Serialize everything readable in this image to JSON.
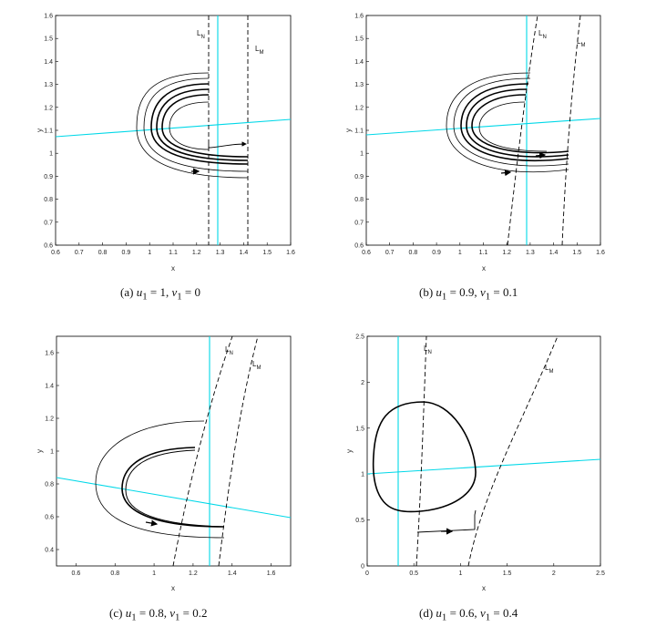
{
  "figure": {
    "panels": [
      {
        "id": "a",
        "caption": {
          "prefix": "(a) ",
          "u_sym": "u",
          "u_val": " = 1, ",
          "v_sym": "v",
          "v_val": " = 0"
        },
        "xlabel": "x",
        "ylabel": "y",
        "xlim": [
          0.6,
          1.6
        ],
        "ylim": [
          0.6,
          1.6
        ],
        "xticks": [
          "0.6",
          "0.7",
          "0.8",
          "0.9",
          "1",
          "1.1",
          "1.2",
          "1.3",
          "1.4",
          "1.5",
          "1.6"
        ],
        "yticks": [
          "0.6",
          "0.7",
          "0.8",
          "0.9",
          "1",
          "1.1",
          "1.2",
          "1.3",
          "1.4",
          "1.5",
          "1.6"
        ],
        "label_LN": "L",
        "label_LN_sub": "N",
        "label_LM": "L",
        "label_LM_sub": "M"
      },
      {
        "id": "b",
        "caption": {
          "prefix": "(b) ",
          "u_sym": "u",
          "u_val": " = 0.9, ",
          "v_sym": "v",
          "v_val": " = 0.1"
        },
        "xlabel": "x",
        "ylabel": "y",
        "xlim": [
          0.6,
          1.6
        ],
        "ylim": [
          0.6,
          1.6
        ],
        "xticks": [
          "0.6",
          "0.7",
          "0.8",
          "0.9",
          "1",
          "1.1",
          "1.2",
          "1.3",
          "1.4",
          "1.5",
          "1.6"
        ],
        "yticks": [
          "0.6",
          "0.7",
          "0.8",
          "0.9",
          "1",
          "1.1",
          "1.2",
          "1.3",
          "1.4",
          "1.5",
          "1.6"
        ],
        "label_LN": "L",
        "label_LN_sub": "N",
        "label_LM": "L",
        "label_LM_sub": "M"
      },
      {
        "id": "c",
        "caption": {
          "prefix": "(c) ",
          "u_sym": "u",
          "u_val": " = 0.8, ",
          "v_sym": "v",
          "v_val": " = 0.2"
        },
        "xlabel": "x",
        "ylabel": "y",
        "xlim": [
          0.5,
          1.7
        ],
        "ylim": [
          0.3,
          1.7
        ],
        "xticks": [
          "0.6",
          "0.8",
          "1",
          "1.2",
          "1.4",
          "1.6"
        ],
        "yticks": [
          "0.4",
          "0.6",
          "0.8",
          "1",
          "1.2",
          "1.4",
          "1.6"
        ],
        "label_LN": "L",
        "label_LN_sub": "N",
        "label_LM": "L",
        "label_LM_sub": "M"
      },
      {
        "id": "d",
        "caption": {
          "prefix": "(d) ",
          "u_sym": "u",
          "u_val": " = 0.6, ",
          "v_sym": "v",
          "v_val": " = 0.4"
        },
        "xlabel": "x",
        "ylabel": "y",
        "xlim": [
          0,
          2.5
        ],
        "ylim": [
          0,
          2.5
        ],
        "xticks": [
          "0",
          "0.5",
          "1",
          "1.5",
          "2",
          "2.5"
        ],
        "yticks": [
          "0",
          "0.5",
          "1",
          "1.5",
          "2",
          "2.5"
        ],
        "label_LN": "L",
        "label_LN_sub": "N",
        "label_LM": "L",
        "label_LM_sub": "M"
      }
    ],
    "caption_sub": "1",
    "colors": {
      "axis": "#000000",
      "line": "#00d8e8",
      "trajectory": "#000000"
    }
  }
}
